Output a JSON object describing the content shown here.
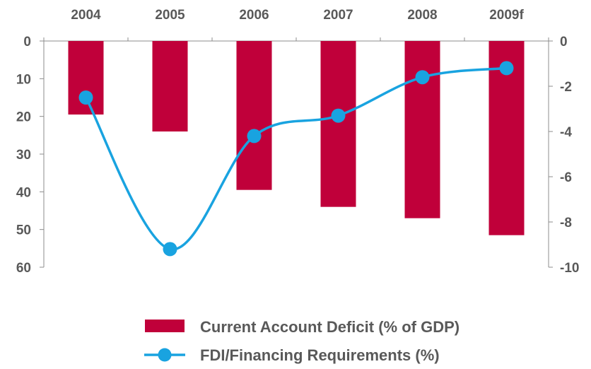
{
  "chart_data": {
    "type": "bar+line",
    "categories": [
      "2004",
      "2005",
      "2006",
      "2007",
      "2008",
      "2009f"
    ],
    "series": [
      {
        "name": "Current Account Deficit (% of GDP)",
        "type": "bar",
        "axis": "left",
        "color": "#c0003a",
        "values": [
          19.5,
          24,
          39.5,
          44,
          47,
          51.5
        ]
      },
      {
        "name": "FDI/Financing Requirements (%)",
        "type": "line",
        "axis": "right",
        "color": "#19a3e0",
        "values": [
          -2.5,
          -9.2,
          -4.2,
          -3.3,
          -1.6,
          -1.2
        ]
      }
    ],
    "left_axis": {
      "min": 0,
      "max": 60,
      "ticks": [
        "0",
        "10",
        "20",
        "30",
        "40",
        "50",
        "60"
      ],
      "inverted": true
    },
    "right_axis": {
      "min": -10,
      "max": 0,
      "ticks": [
        "0",
        "-2",
        "-4",
        "-6",
        "-8",
        "-10"
      ]
    },
    "category_axis_position": "top",
    "grid": false,
    "legend": "bottom"
  }
}
